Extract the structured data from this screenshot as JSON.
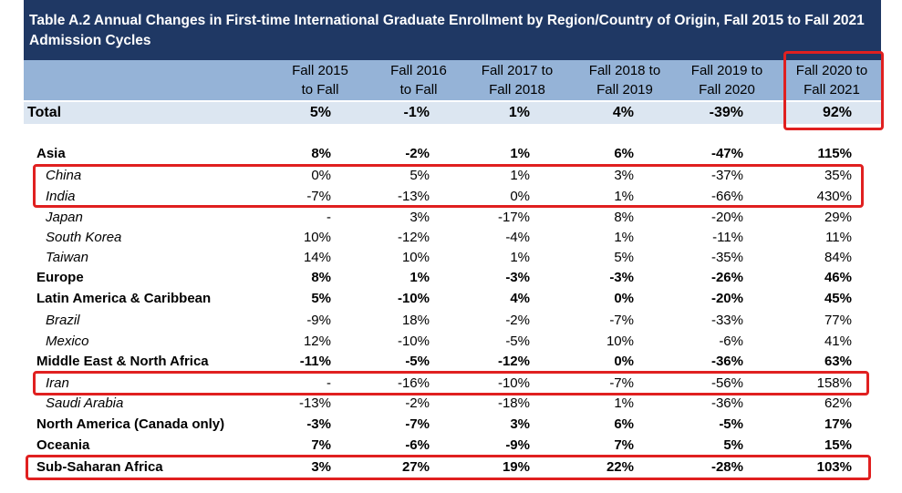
{
  "title": "Table A.2 Annual Changes in First-time International Graduate Enrollment by Region/Country of Origin, Fall 2015 to Fall 2021 Admission Cycles",
  "columns": [
    [
      "Fall 2015",
      "to Fall"
    ],
    [
      "Fall 2016",
      "to Fall"
    ],
    [
      "Fall 2017 to",
      "Fall 2018"
    ],
    [
      "Fall 2018 to",
      "Fall 2019"
    ],
    [
      "Fall 2019 to",
      "Fall 2020"
    ],
    [
      "Fall 2020 to",
      "Fall 2021"
    ]
  ],
  "total": {
    "label": "Total",
    "values": [
      "5%",
      "-1%",
      "1%",
      "4%",
      "-39%",
      "92%"
    ]
  },
  "rows": [
    {
      "label": "Asia",
      "values": [
        "8%",
        "-2%",
        "1%",
        "6%",
        "-47%",
        "115%"
      ],
      "type": "region"
    },
    {
      "label": "China",
      "values": [
        "0%",
        "5%",
        "1%",
        "3%",
        "-37%",
        "35%"
      ],
      "type": "country"
    },
    {
      "label": "India",
      "values": [
        "-7%",
        "-13%",
        "0%",
        "1%",
        "-66%",
        "430%"
      ],
      "type": "country"
    },
    {
      "label": "Japan",
      "values": [
        "-",
        "3%",
        "-17%",
        "8%",
        "-20%",
        "29%"
      ],
      "type": "country"
    },
    {
      "label": "South Korea",
      "values": [
        "10%",
        "-12%",
        "-4%",
        "1%",
        "-11%",
        "11%"
      ],
      "type": "country"
    },
    {
      "label": "Taiwan",
      "values": [
        "14%",
        "10%",
        "1%",
        "5%",
        "-35%",
        "84%"
      ],
      "type": "country"
    },
    {
      "label": "Europe",
      "values": [
        "8%",
        "1%",
        "-3%",
        "-3%",
        "-26%",
        "46%"
      ],
      "type": "region"
    },
    {
      "label": "Latin America & Caribbean",
      "values": [
        "5%",
        "-10%",
        "4%",
        "0%",
        "-20%",
        "45%"
      ],
      "type": "region"
    },
    {
      "label": "Brazil",
      "values": [
        "-9%",
        "18%",
        "-2%",
        "-7%",
        "-33%",
        "77%"
      ],
      "type": "country"
    },
    {
      "label": "Mexico",
      "values": [
        "12%",
        "-10%",
        "-5%",
        "10%",
        "-6%",
        "41%"
      ],
      "type": "country"
    },
    {
      "label": "Middle East & North Africa",
      "values": [
        "-11%",
        "-5%",
        "-12%",
        "0%",
        "-36%",
        "63%"
      ],
      "type": "region"
    },
    {
      "label": "Iran",
      "values": [
        "-",
        "-16%",
        "-10%",
        "-7%",
        "-56%",
        "158%"
      ],
      "type": "country"
    },
    {
      "label": "Saudi Arabia",
      "values": [
        "-13%",
        "-2%",
        "-18%",
        "1%",
        "-36%",
        "62%"
      ],
      "type": "country"
    },
    {
      "label": "North America (Canada only)",
      "values": [
        "-3%",
        "-7%",
        "3%",
        "6%",
        "-5%",
        "17%"
      ],
      "type": "region"
    },
    {
      "label": "Oceania",
      "values": [
        "7%",
        "-6%",
        "-9%",
        "7%",
        "5%",
        "15%"
      ],
      "type": "region"
    },
    {
      "label": "Sub-Saharan Africa",
      "values": [
        "3%",
        "27%",
        "19%",
        "22%",
        "-28%",
        "103%"
      ],
      "type": "region"
    }
  ],
  "highlight_color": "#e02020"
}
